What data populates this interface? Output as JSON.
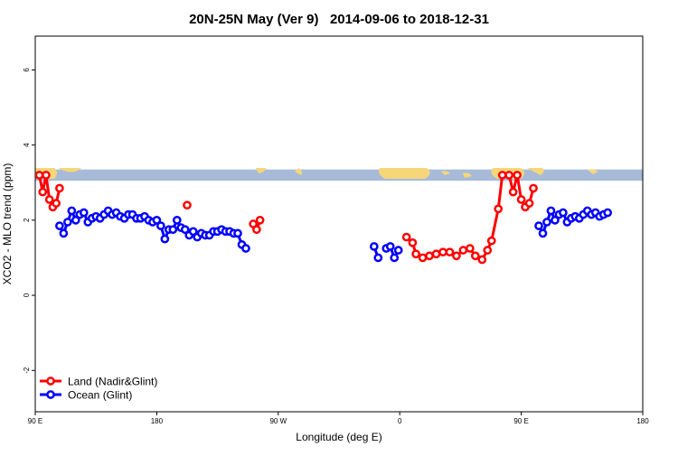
{
  "chart_data": {
    "type": "line",
    "title": "20N-25N May (Ver 9)   2014-09-06 to 2018-12-31",
    "xlabel": "Longitude (deg E)",
    "ylabel": "XCO2 - MLO trend (ppm)",
    "xlim": [
      90,
      540
    ],
    "ylim": [
      -3.1,
      6.9
    ],
    "x_ticks": [
      {
        "value": 90,
        "label": "90 E"
      },
      {
        "value": 180,
        "label": "180"
      },
      {
        "value": 270,
        "label": "90 W"
      },
      {
        "value": 360,
        "label": "0"
      },
      {
        "value": 450,
        "label": "90 E"
      },
      {
        "value": 540,
        "label": "180"
      }
    ],
    "y_ticks": [
      {
        "value": -2,
        "label": "-2"
      },
      {
        "value": 0,
        "label": "0"
      },
      {
        "value": 2,
        "label": "2"
      },
      {
        "value": 4,
        "label": "4"
      },
      {
        "value": 6,
        "label": "6"
      }
    ],
    "legend_position": "bottom-left",
    "map_strip": {
      "y_from": 3.05,
      "y_to": 3.35,
      "ocean_color": "#a7bbd8",
      "land_color": "#f5d77a"
    },
    "series": [
      {
        "name": "Land (Nadir&Glint)",
        "color": "#ff0000",
        "segments": [
          [
            [
              93,
              3.2
            ],
            [
              95.5,
              2.75
            ],
            [
              98,
              3.2
            ],
            [
              100.5,
              2.55
            ],
            [
              103,
              2.35
            ],
            [
              105.5,
              2.45
            ],
            [
              108,
              2.85
            ]
          ],
          [
            [
              202.5,
              2.4
            ]
          ],
          [
            [
              251.5,
              1.9
            ],
            [
              254,
              1.75
            ],
            [
              256.5,
              2.0
            ]
          ],
          [
            [
              365,
              1.55
            ],
            [
              369.5,
              1.4
            ],
            [
              372,
              1.1
            ],
            [
              377,
              1.0
            ],
            [
              382,
              1.05
            ],
            [
              387,
              1.1
            ],
            [
              392,
              1.15
            ],
            [
              397,
              1.15
            ],
            [
              402,
              1.05
            ],
            [
              407,
              1.2
            ],
            [
              412,
              1.25
            ],
            [
              416,
              1.05
            ],
            [
              421,
              0.95
            ],
            [
              425,
              1.2
            ],
            [
              428,
              1.45
            ],
            [
              433,
              2.3
            ],
            [
              436,
              3.2
            ],
            [
              441,
              3.2
            ],
            [
              444,
              2.75
            ],
            [
              447,
              3.2
            ],
            [
              450,
              2.55
            ],
            [
              453,
              2.35
            ],
            [
              456,
              2.45
            ],
            [
              459,
              2.85
            ]
          ]
        ]
      },
      {
        "name": "Ocean (Glint)",
        "color": "#0000ff",
        "segments": [
          [
            [
              108,
              1.85
            ],
            [
              111,
              1.65
            ],
            [
              114,
              1.95
            ],
            [
              117,
              2.25
            ],
            [
              120,
              2.0
            ],
            [
              123,
              2.15
            ],
            [
              126,
              2.2
            ],
            [
              129,
              1.95
            ],
            [
              132,
              2.05
            ],
            [
              135,
              2.1
            ],
            [
              138,
              2.05
            ],
            [
              141,
              2.15
            ],
            [
              144,
              2.25
            ],
            [
              147,
              2.15
            ],
            [
              150,
              2.2
            ],
            [
              153,
              2.1
            ],
            [
              156,
              2.05
            ],
            [
              159,
              2.15
            ],
            [
              162,
              2.15
            ],
            [
              165,
              2.05
            ],
            [
              168,
              2.05
            ],
            [
              171,
              2.1
            ],
            [
              174,
              2.0
            ],
            [
              177,
              1.95
            ],
            [
              180,
              2.0
            ],
            [
              183,
              1.85
            ],
            [
              186,
              1.5
            ],
            [
              189,
              1.75
            ],
            [
              192,
              1.75
            ],
            [
              195,
              2.0
            ],
            [
              198,
              1.8
            ],
            [
              201,
              1.75
            ],
            [
              204,
              1.6
            ],
            [
              207,
              1.7
            ],
            [
              210,
              1.55
            ],
            [
              213,
              1.65
            ],
            [
              216,
              1.6
            ],
            [
              219,
              1.6
            ],
            [
              222,
              1.7
            ],
            [
              225,
              1.7
            ],
            [
              228,
              1.75
            ],
            [
              231,
              1.7
            ],
            [
              234,
              1.7
            ],
            [
              237,
              1.65
            ],
            [
              240,
              1.65
            ],
            [
              243,
              1.35
            ],
            [
              246,
              1.25
            ]
          ],
          [
            [
              341,
              1.3
            ],
            [
              344,
              1.0
            ]
          ],
          [
            [
              350,
              1.25
            ],
            [
              353,
              1.3
            ],
            [
              356,
              1.0
            ],
            [
              359,
              1.2
            ]
          ],
          [
            [
              463,
              1.85
            ],
            [
              466,
              1.65
            ],
            [
              469,
              1.95
            ],
            [
              472,
              2.25
            ],
            [
              475,
              2.0
            ],
            [
              478,
              2.15
            ],
            [
              481,
              2.2
            ],
            [
              484,
              1.95
            ],
            [
              487,
              2.05
            ],
            [
              490,
              2.1
            ],
            [
              493,
              2.05
            ],
            [
              496,
              2.15
            ],
            [
              499,
              2.25
            ],
            [
              502,
              2.15
            ],
            [
              505,
              2.2
            ],
            [
              508,
              2.1
            ],
            [
              511,
              2.15
            ],
            [
              514,
              2.2
            ]
          ]
        ]
      }
    ]
  }
}
